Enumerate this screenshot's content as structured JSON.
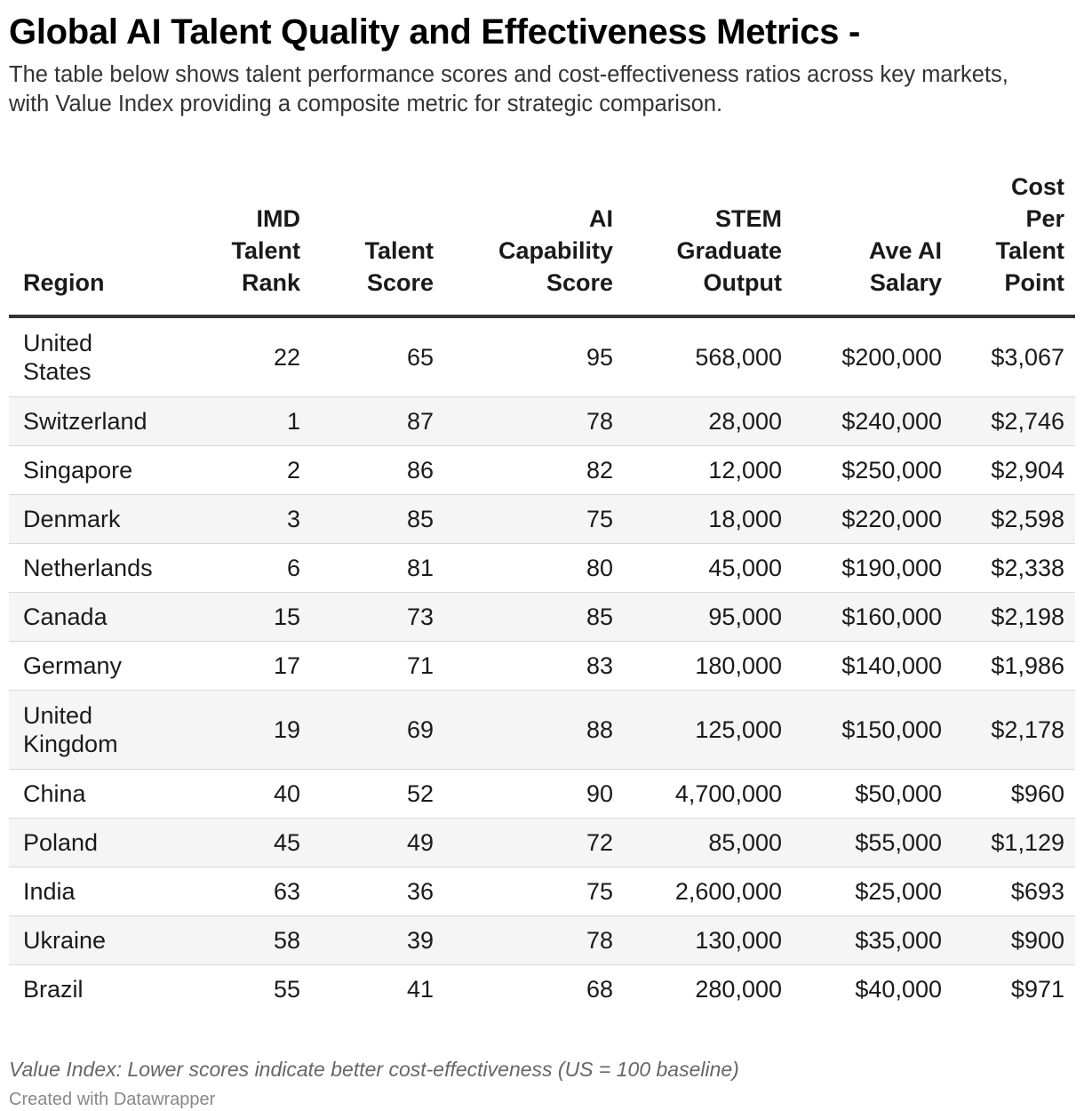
{
  "title": "Global AI Talent Quality and Effectiveness Metrics -",
  "subtitle": "The table below shows talent performance scores and cost-effectiveness ratios across key markets, with Value Index providing a composite metric for strategic comparison.",
  "notes": "Value Index: Lower scores indicate better cost-effectiveness (US = 100 baseline)",
  "credit": "Created with Datawrapper",
  "chart_data": {
    "type": "table",
    "columns": [
      "Region",
      "IMD Talent Rank",
      "Talent Score",
      "AI Capability Score",
      "STEM Graduate Output",
      "Ave AI Salary",
      "Cost Per Talent Point"
    ],
    "rows": [
      [
        "United States",
        "22",
        "65",
        "95",
        "568,000",
        "$200,000",
        "$3,067"
      ],
      [
        "Switzerland",
        "1",
        "87",
        "78",
        "28,000",
        "$240,000",
        "$2,746"
      ],
      [
        "Singapore",
        "2",
        "86",
        "82",
        "12,000",
        "$250,000",
        "$2,904"
      ],
      [
        "Denmark",
        "3",
        "85",
        "75",
        "18,000",
        "$220,000",
        "$2,598"
      ],
      [
        "Netherlands",
        "6",
        "81",
        "80",
        "45,000",
        "$190,000",
        "$2,338"
      ],
      [
        "Canada",
        "15",
        "73",
        "85",
        "95,000",
        "$160,000",
        "$2,198"
      ],
      [
        "Germany",
        "17",
        "71",
        "83",
        "180,000",
        "$140,000",
        "$1,986"
      ],
      [
        "United Kingdom",
        "19",
        "69",
        "88",
        "125,000",
        "$150,000",
        "$2,178"
      ],
      [
        "China",
        "40",
        "52",
        "90",
        "4,700,000",
        "$50,000",
        "$960"
      ],
      [
        "Poland",
        "45",
        "49",
        "72",
        "85,000",
        "$55,000",
        "$1,129"
      ],
      [
        "India",
        "63",
        "36",
        "75",
        "2,600,000",
        "$25,000",
        "$693"
      ],
      [
        "Ukraine",
        "58",
        "39",
        "78",
        "130,000",
        "$35,000",
        "$900"
      ],
      [
        "Brazil",
        "55",
        "41",
        "68",
        "280,000",
        "$40,000",
        "$971"
      ]
    ]
  }
}
